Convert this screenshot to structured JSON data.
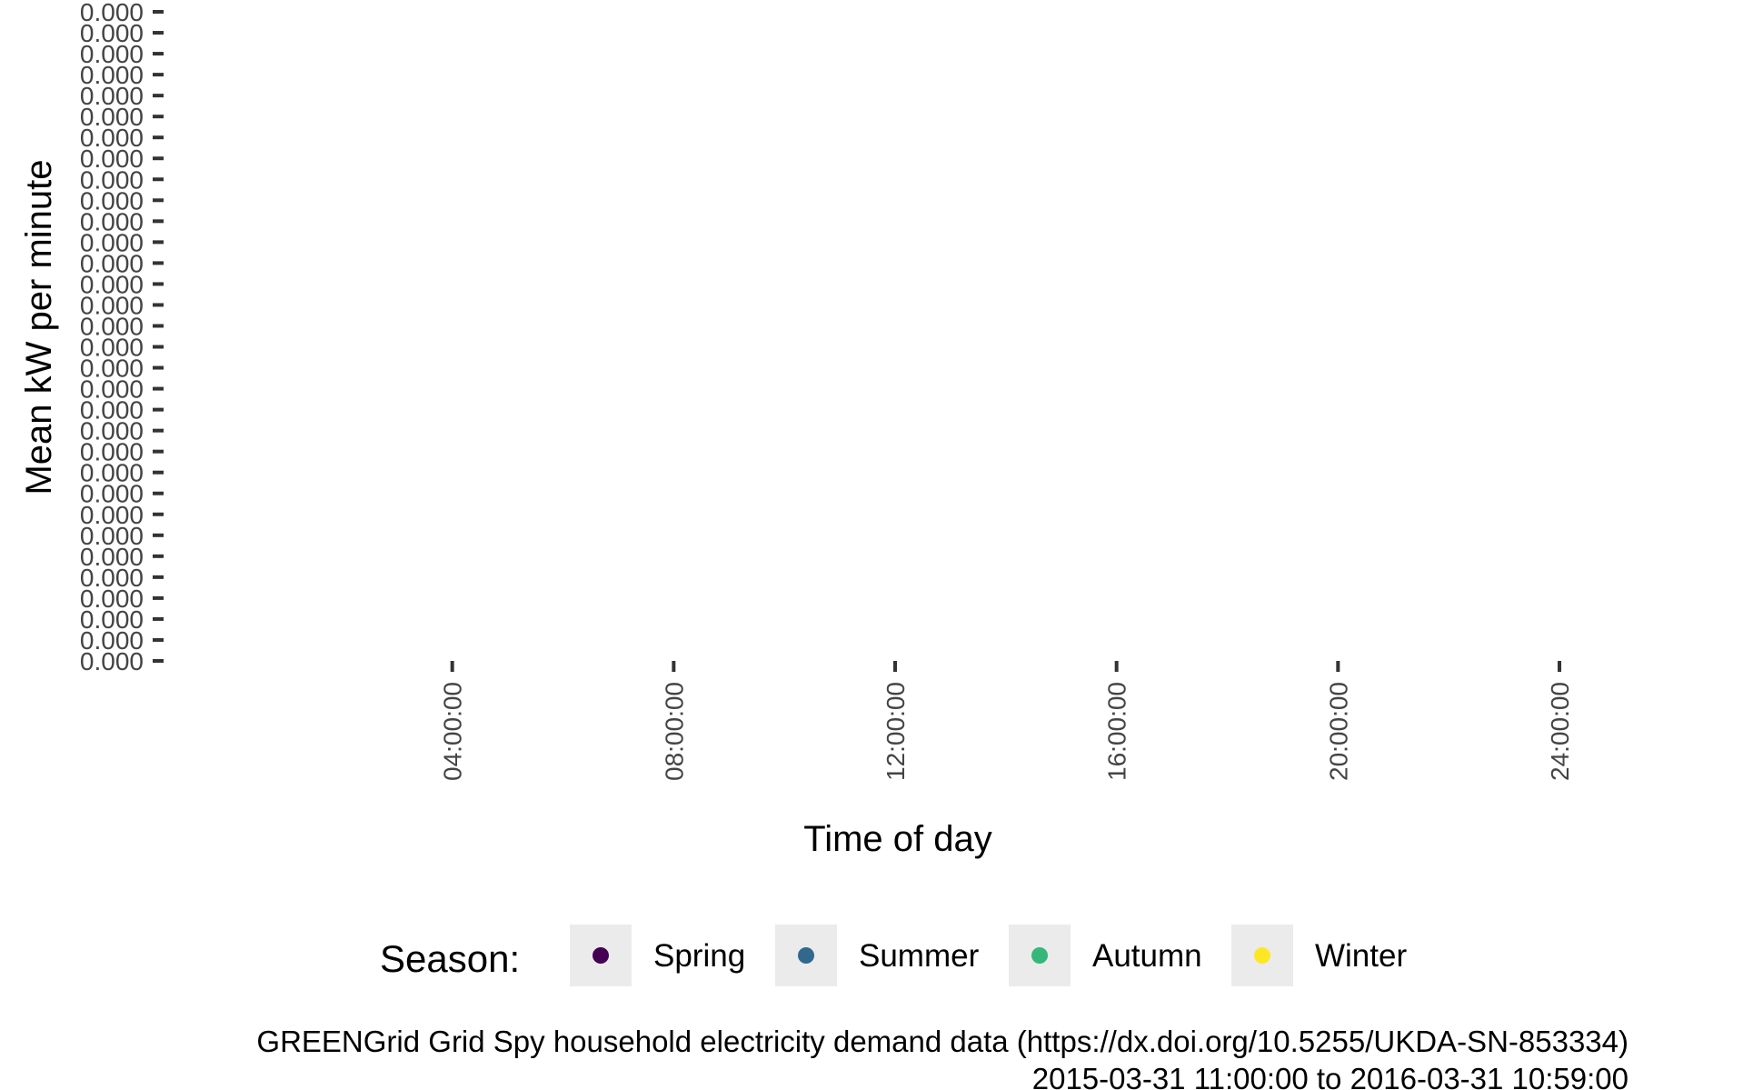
{
  "chart_data": {
    "type": "line",
    "title": "",
    "xlabel": "Time of day",
    "ylabel": "Mean kW per minute",
    "x_ticks": [
      "04:00:00",
      "08:00:00",
      "12:00:00",
      "16:00:00",
      "20:00:00",
      "24:00:00"
    ],
    "x_range": [
      "00:00:00",
      "24:00:00"
    ],
    "y_tick_label": "0.000",
    "y_tick_count": 32,
    "series": [],
    "grid": false,
    "legend": {
      "title": "Season:",
      "placement": "bottom",
      "entries": [
        {
          "name": "Spring",
          "color": "#440154"
        },
        {
          "name": "Summer",
          "color": "#31688E"
        },
        {
          "name": "Autumn",
          "color": "#35B779"
        },
        {
          "name": "Winter",
          "color": "#FDE725"
        }
      ]
    },
    "caption": {
      "line1": "GREENGrid Grid Spy household electricity demand data (https://dx.doi.org/10.5255/UKDA-SN-853334)",
      "line2": "2015-03-31 11:00:00 to 2016-03-31 10:59:00"
    }
  }
}
